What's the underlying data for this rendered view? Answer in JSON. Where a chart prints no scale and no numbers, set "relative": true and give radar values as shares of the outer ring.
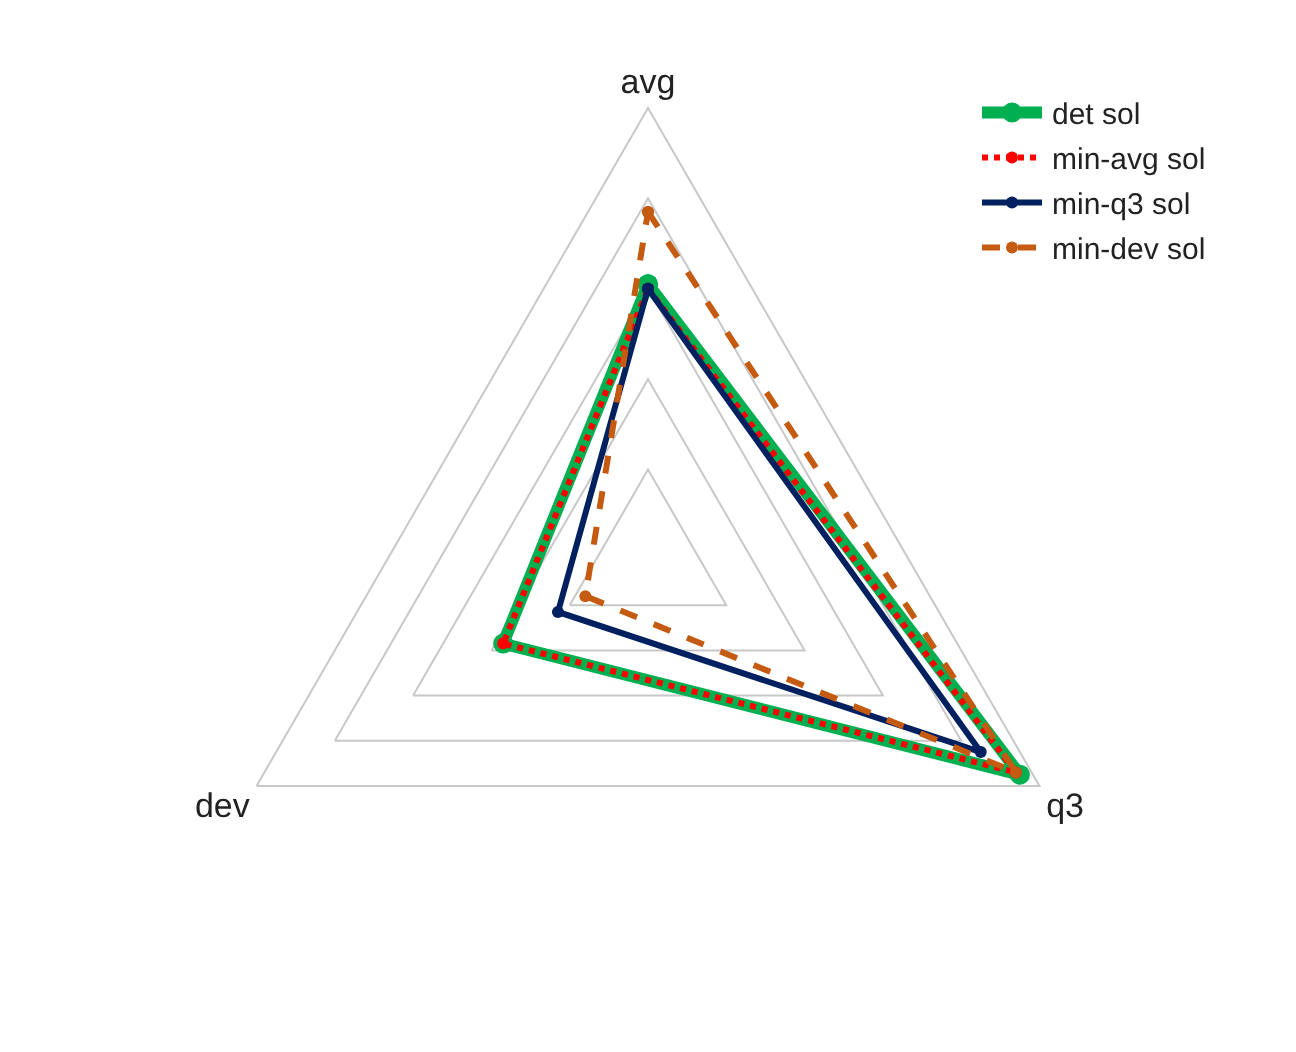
{
  "chart_data": {
    "type": "radar",
    "relative": true,
    "categories": [
      "avg",
      "q3",
      "dev"
    ],
    "series": [
      {
        "name": "det sol",
        "color": "#00b050",
        "line_style": "solid",
        "values": [
          0.61,
          0.95,
          0.37
        ]
      },
      {
        "name": "min-avg sol",
        "color": "#ff0000",
        "line_style": "dotted",
        "values": [
          0.6,
          0.94,
          0.37
        ]
      },
      {
        "name": "min-q3 sol",
        "color": "#002060",
        "line_style": "solid",
        "values": [
          0.6,
          0.85,
          0.23
        ]
      },
      {
        "name": "min-dev sol",
        "color": "#c55a11",
        "line_style": "dashed",
        "values": [
          0.77,
          0.94,
          0.16
        ]
      }
    ],
    "marker": "circle",
    "grid": true,
    "legend": "top right"
  }
}
